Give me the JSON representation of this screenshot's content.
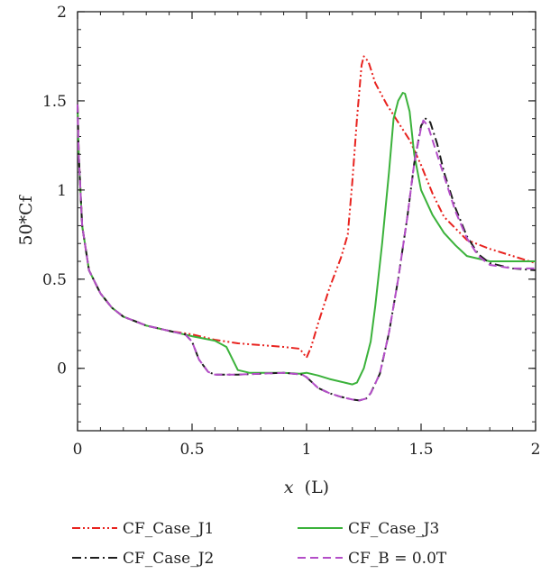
{
  "chart_data": {
    "type": "line",
    "xlabel_main": "x",
    "xlabel_unit": "(L)",
    "ylabel": "50*Cf",
    "xlim": [
      0,
      2
    ],
    "ylim": [
      -0.35,
      2
    ],
    "x_ticks": [
      0,
      0.5,
      1,
      1.5,
      2
    ],
    "x_tick_labels": [
      "0",
      "0.5",
      "1",
      "1.5",
      "2"
    ],
    "y_ticks": [
      0,
      0.5,
      1,
      1.5,
      2
    ],
    "y_tick_labels": [
      "0",
      "0.5",
      "1",
      "1.5",
      "2"
    ],
    "grid": false,
    "legend_position": "bottom",
    "series": [
      {
        "name": "CF_Case_J1",
        "color": "#e8231f",
        "dash": "dash-dot-dot",
        "x": [
          0,
          0.005,
          0.02,
          0.05,
          0.1,
          0.15,
          0.2,
          0.3,
          0.4,
          0.5,
          0.6,
          0.7,
          0.8,
          0.9,
          0.97,
          1.0,
          1.02,
          1.05,
          1.1,
          1.15,
          1.18,
          1.2,
          1.22,
          1.24,
          1.25,
          1.27,
          1.3,
          1.35,
          1.4,
          1.45,
          1.5,
          1.55,
          1.6,
          1.7,
          1.8,
          1.9,
          2.0
        ],
        "y": [
          1.48,
          1.2,
          0.8,
          0.55,
          0.42,
          0.34,
          0.29,
          0.24,
          0.21,
          0.19,
          0.16,
          0.14,
          0.13,
          0.12,
          0.11,
          0.06,
          0.12,
          0.25,
          0.45,
          0.62,
          0.75,
          1.05,
          1.4,
          1.7,
          1.75,
          1.72,
          1.6,
          1.48,
          1.38,
          1.28,
          1.14,
          0.98,
          0.85,
          0.72,
          0.67,
          0.63,
          0.59
        ]
      },
      {
        "name": "CF_Case_J3",
        "color": "#3bb23b",
        "dash": "solid",
        "x": [
          0,
          0.005,
          0.02,
          0.05,
          0.1,
          0.15,
          0.2,
          0.3,
          0.4,
          0.5,
          0.6,
          0.65,
          0.7,
          0.75,
          0.8,
          0.9,
          0.97,
          1.0,
          1.05,
          1.1,
          1.15,
          1.2,
          1.22,
          1.25,
          1.28,
          1.3,
          1.33,
          1.36,
          1.38,
          1.4,
          1.42,
          1.43,
          1.45,
          1.47,
          1.5,
          1.55,
          1.6,
          1.65,
          1.7,
          1.8,
          1.9,
          2.0
        ],
        "y": [
          1.48,
          1.2,
          0.8,
          0.55,
          0.42,
          0.34,
          0.29,
          0.24,
          0.21,
          0.18,
          0.155,
          0.12,
          -0.01,
          -0.025,
          -0.025,
          -0.025,
          -0.03,
          -0.025,
          -0.04,
          -0.06,
          -0.075,
          -0.09,
          -0.08,
          0.0,
          0.15,
          0.35,
          0.7,
          1.1,
          1.4,
          1.5,
          1.545,
          1.54,
          1.44,
          1.2,
          1.0,
          0.86,
          0.76,
          0.69,
          0.63,
          0.6,
          0.6,
          0.6
        ]
      },
      {
        "name": "CF_Case_J2",
        "color": "#1e1e1e",
        "dash": "dash-dot",
        "x": [
          0,
          0.005,
          0.02,
          0.05,
          0.1,
          0.15,
          0.2,
          0.3,
          0.4,
          0.47,
          0.5,
          0.53,
          0.57,
          0.6,
          0.7,
          0.8,
          0.9,
          0.98,
          1.0,
          1.05,
          1.1,
          1.15,
          1.2,
          1.23,
          1.26,
          1.28,
          1.32,
          1.36,
          1.4,
          1.44,
          1.47,
          1.5,
          1.52,
          1.54,
          1.57,
          1.6,
          1.65,
          1.7,
          1.75,
          1.8,
          1.9,
          2.0
        ],
        "y": [
          1.48,
          1.2,
          0.8,
          0.55,
          0.42,
          0.34,
          0.29,
          0.24,
          0.21,
          0.19,
          0.15,
          0.05,
          -0.02,
          -0.035,
          -0.035,
          -0.03,
          -0.025,
          -0.035,
          -0.05,
          -0.11,
          -0.14,
          -0.16,
          -0.175,
          -0.18,
          -0.17,
          -0.14,
          -0.03,
          0.2,
          0.5,
          0.85,
          1.15,
          1.36,
          1.4,
          1.38,
          1.26,
          1.1,
          0.9,
          0.74,
          0.64,
          0.59,
          0.56,
          0.55
        ]
      },
      {
        "name": "CF_B = 0.0T",
        "color": "#b44ec8",
        "dash": "dashed",
        "x": [
          0,
          0.005,
          0.02,
          0.05,
          0.1,
          0.15,
          0.2,
          0.3,
          0.4,
          0.47,
          0.5,
          0.53,
          0.57,
          0.6,
          0.7,
          0.8,
          0.9,
          0.98,
          1.0,
          1.05,
          1.1,
          1.15,
          1.2,
          1.23,
          1.26,
          1.28,
          1.32,
          1.36,
          1.4,
          1.44,
          1.47,
          1.5,
          1.51,
          1.53,
          1.56,
          1.6,
          1.65,
          1.7,
          1.75,
          1.8,
          1.9,
          2.0
        ],
        "y": [
          1.48,
          1.2,
          0.8,
          0.55,
          0.42,
          0.34,
          0.29,
          0.24,
          0.21,
          0.19,
          0.15,
          0.05,
          -0.02,
          -0.035,
          -0.035,
          -0.03,
          -0.025,
          -0.035,
          -0.05,
          -0.11,
          -0.14,
          -0.16,
          -0.175,
          -0.18,
          -0.17,
          -0.14,
          -0.03,
          0.2,
          0.5,
          0.85,
          1.15,
          1.35,
          1.39,
          1.36,
          1.24,
          1.08,
          0.88,
          0.73,
          0.63,
          0.58,
          0.56,
          0.56
        ]
      }
    ]
  }
}
